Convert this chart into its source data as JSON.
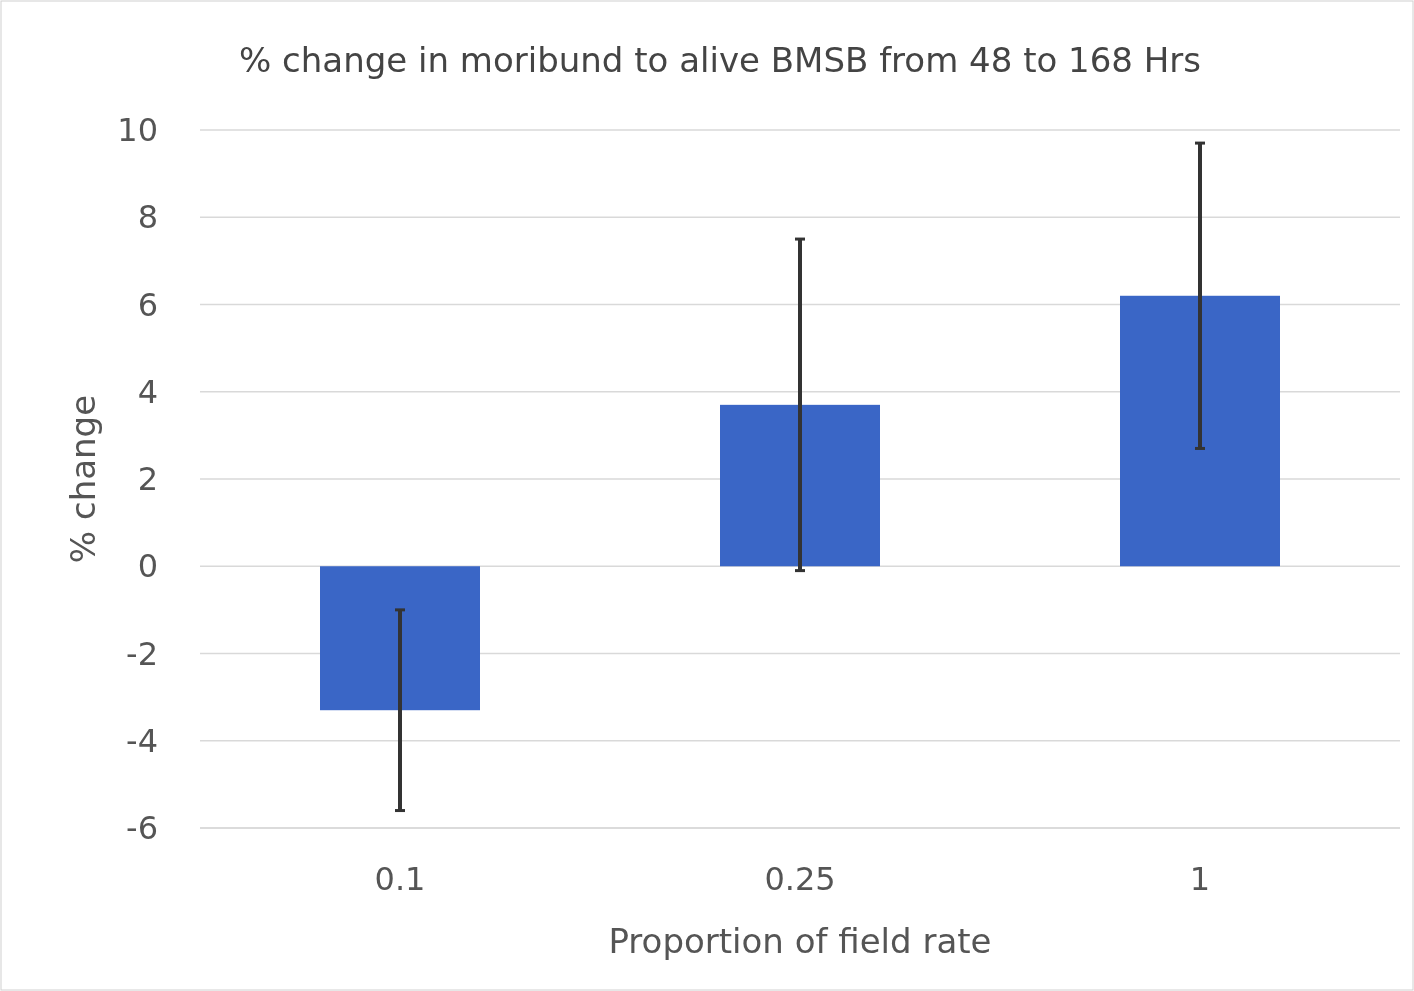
{
  "chart_data": {
    "type": "bar",
    "title": "% change in moribund to alive BMSB from 48 to 168 Hrs",
    "xlabel": "Proportion of field rate",
    "ylabel": "% change",
    "categories": [
      "0.1",
      "0.25",
      "1"
    ],
    "values": [
      -3.3,
      3.7,
      6.2
    ],
    "errors": [
      2.3,
      3.8,
      3.5
    ],
    "color": "#3a66c6",
    "ylim": [
      -6,
      10
    ],
    "yticks": [
      -6,
      -4,
      -2,
      0,
      2,
      4,
      6,
      8,
      10
    ],
    "grid": "y"
  }
}
